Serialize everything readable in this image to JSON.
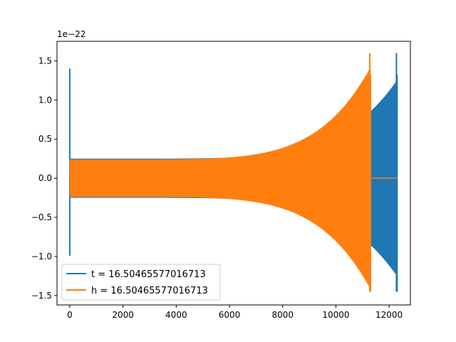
{
  "chart_data": {
    "type": "line",
    "y_offset_label": "1e−22",
    "xlim": [
      -480,
      12800
    ],
    "ylim": [
      -1.62,
      1.75
    ],
    "x_ticks": [
      0,
      2000,
      4000,
      6000,
      8000,
      10000,
      12000
    ],
    "x_tick_labels": [
      "0",
      "2000",
      "4000",
      "6000",
      "8000",
      "10000",
      "12000"
    ],
    "y_ticks": [
      -1.5,
      -1.0,
      -0.5,
      0.0,
      0.5,
      1.0,
      1.5
    ],
    "y_tick_labels": [
      "−1.5",
      "−1.0",
      "−0.5",
      "0.0",
      "0.5",
      "1.0",
      "1.5"
    ],
    "legend_position": "lower-left",
    "series": [
      {
        "name": "t = 16.50465577016713",
        "color": "#1f77b4",
        "spike_x": 0,
        "spike_range": [
          -0.99,
          1.4
        ],
        "start_amplitude": 0.25,
        "end_amplitude": 1.33,
        "merger_x": 12290,
        "merger_range": [
          -1.45,
          1.6
        ],
        "x_end": 12290
      },
      {
        "name": "h = 16.50465577016713",
        "color": "#ff7f0e",
        "start_amplitude": 0.24,
        "end_amplitude": 1.5,
        "merger_x": 11290,
        "merger_range": [
          -1.45,
          1.6
        ],
        "flat_after_x": 11340,
        "flat_value": 0.0,
        "x_end": 12300
      }
    ]
  }
}
